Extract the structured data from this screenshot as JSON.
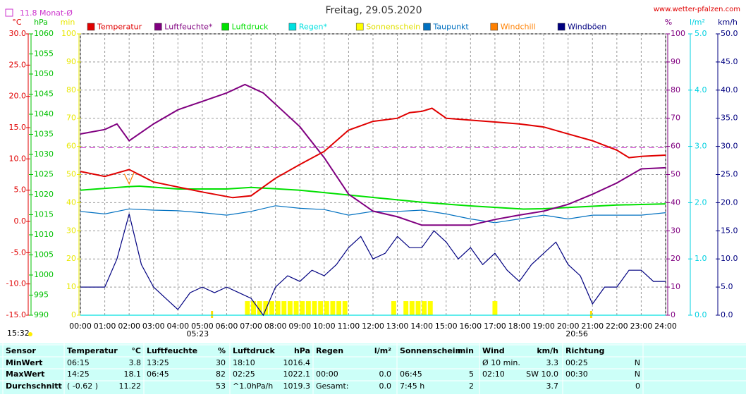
{
  "chart_data": {
    "type": "line",
    "title": "Freitag, 29.05.2020",
    "site": "www.wetter-pfalzen.com",
    "time": "15:32",
    "grid": true,
    "xlim": [
      0,
      24
    ],
    "xticks": [
      {
        "value": 0,
        "label": "00:00"
      },
      {
        "value": 1,
        "label": "01:00"
      },
      {
        "value": 2,
        "label": "02:00"
      },
      {
        "value": 3,
        "label": "03:00"
      },
      {
        "value": 4,
        "label": "04:00"
      },
      {
        "value": 5,
        "label": "05:00"
      },
      {
        "value": 6,
        "label": "06:00"
      },
      {
        "value": 7,
        "label": "07:00"
      },
      {
        "value": 8,
        "label": "08:00"
      },
      {
        "value": 9,
        "label": "09:00"
      },
      {
        "value": 10,
        "label": "10:00"
      },
      {
        "value": 11,
        "label": "11:00"
      },
      {
        "value": 12,
        "label": "12:00"
      },
      {
        "value": 13,
        "label": "13:00"
      },
      {
        "value": 14,
        "label": "14:00"
      },
      {
        "value": 15,
        "label": "15:00"
      },
      {
        "value": 16,
        "label": "16:00"
      },
      {
        "value": 17,
        "label": "17:00"
      },
      {
        "value": 18,
        "label": "18:00"
      },
      {
        "value": 19,
        "label": "19:00"
      },
      {
        "value": 20,
        "label": "20:00"
      },
      {
        "value": 21,
        "label": "21:00"
      },
      {
        "value": 22,
        "label": "22:00"
      },
      {
        "value": 23,
        "label": "23:00"
      },
      {
        "value": 24,
        "label": "24:00"
      }
    ],
    "sunrise": {
      "value": 5.383,
      "label": "05:23"
    },
    "sunset": {
      "value": 20.933,
      "label": "20:56"
    },
    "reference_line": {
      "value": 11.8,
      "label": "11.8 Monat-Ø",
      "color": "#cc33cc",
      "axis": "°C"
    },
    "axes": [
      {
        "unit": "°C",
        "color": "#e00000",
        "ylim": [
          -15,
          30
        ],
        "yticks": [
          {
            "value": 30,
            "label": "30.0"
          },
          {
            "value": 25,
            "label": "25.0"
          },
          {
            "value": 20,
            "label": "20.0"
          },
          {
            "value": 15,
            "label": "15.0"
          },
          {
            "value": 10,
            "label": "10.0"
          },
          {
            "value": 5,
            "label": "5.0"
          },
          {
            "value": 0,
            "label": "0.0"
          },
          {
            "value": -5,
            "label": "-5.0"
          },
          {
            "value": -10,
            "label": "-10.0"
          },
          {
            "value": -15,
            "label": "-15.0"
          }
        ]
      },
      {
        "unit": "hPa",
        "color": "#00c000",
        "ylim": [
          990,
          1060
        ],
        "yticks": [
          1060,
          1055,
          1050,
          1045,
          1040,
          1035,
          1030,
          1025,
          1020,
          1015,
          1010,
          1005,
          1000,
          995,
          990
        ]
      },
      {
        "unit": "min",
        "color": "#e8e800",
        "ylim": [
          0,
          100
        ],
        "yticks": [
          100,
          90,
          80,
          70,
          60,
          50,
          40,
          30,
          20,
          10,
          0
        ]
      },
      {
        "unit": "%",
        "color": "#800080",
        "ylim": [
          0,
          100
        ],
        "yticks": [
          100,
          90,
          80,
          70,
          60,
          50,
          40,
          30,
          20,
          10,
          0
        ]
      },
      {
        "unit": "l/m²",
        "color": "#00d0e0",
        "ylim": [
          0,
          5
        ],
        "yticks": [
          {
            "value": 5,
            "label": "5.0"
          },
          {
            "value": 4,
            "label": "4.0"
          },
          {
            "value": 3,
            "label": "3.0"
          },
          {
            "value": 2,
            "label": "2.0"
          },
          {
            "value": 1,
            "label": "1.0"
          },
          {
            "value": 0,
            "label": "0.0"
          }
        ]
      },
      {
        "unit": "km/h",
        "color": "#000080",
        "ylim": [
          0,
          50
        ],
        "yticks": [
          {
            "value": 50,
            "label": "50.0"
          },
          {
            "value": 45,
            "label": "45.0"
          },
          {
            "value": 40,
            "label": "40.0"
          },
          {
            "value": 35,
            "label": "35.0"
          },
          {
            "value": 30,
            "label": "30.0"
          },
          {
            "value": 25,
            "label": "25.0"
          },
          {
            "value": 20,
            "label": "20.0"
          },
          {
            "value": 15,
            "label": "15.0"
          },
          {
            "value": 10,
            "label": "10.0"
          },
          {
            "value": 5,
            "label": "5.0"
          },
          {
            "value": 0,
            "label": "0.0"
          }
        ]
      }
    ],
    "series": [
      {
        "name": "Temperatur",
        "color": "#e00000",
        "axis": "°C",
        "kind": "line",
        "x": [
          0,
          1,
          2,
          3,
          4,
          5,
          6.25,
          7,
          7.5,
          8,
          9,
          10,
          11,
          12,
          13,
          13.5,
          14,
          14.42,
          15,
          16,
          17,
          18,
          19,
          20,
          21,
          22,
          22.5,
          23,
          24
        ],
        "values": [
          8.0,
          7.2,
          8.3,
          6.3,
          5.5,
          4.7,
          3.8,
          4.1,
          5.5,
          6.9,
          9.1,
          11.2,
          14.6,
          16.0,
          16.5,
          17.4,
          17.6,
          18.1,
          16.5,
          16.2,
          15.9,
          15.6,
          15.1,
          14.0,
          12.9,
          11.4,
          10.2,
          10.4,
          10.6
        ]
      },
      {
        "name": "Luftfeuchte*",
        "color": "#800080",
        "axis": "%",
        "kind": "line",
        "x": [
          0,
          1,
          1.5,
          2,
          3,
          4,
          5,
          6,
          6.75,
          7.5,
          8,
          9,
          10,
          11,
          12,
          13,
          14,
          15,
          16,
          17,
          18,
          19,
          20,
          21,
          22,
          23,
          24
        ],
        "values": [
          64.4,
          66,
          68,
          62,
          68,
          73,
          76,
          79,
          82,
          79,
          75,
          67,
          56,
          43,
          37,
          35,
          32,
          32,
          32,
          34,
          35.6,
          37,
          39.4,
          43,
          47,
          52,
          52.4
        ]
      },
      {
        "name": "Luftdruck",
        "color": "#00e000",
        "axis": "hPa",
        "kind": "line",
        "x": [
          0,
          2,
          2.42,
          4,
          6,
          7,
          9,
          10,
          12,
          14,
          16,
          18.17,
          19,
          20,
          22,
          24
        ],
        "values": [
          1021.1,
          1022.0,
          1022.1,
          1021.4,
          1021.4,
          1021.8,
          1021.1,
          1020.5,
          1019.3,
          1018.1,
          1017.2,
          1016.4,
          1016.5,
          1016.8,
          1017.4,
          1017.7
        ]
      },
      {
        "name": "Regen*",
        "color": "#00e0e0",
        "axis": "l/m²",
        "kind": "line",
        "x": [
          0,
          24
        ],
        "values": [
          0,
          0
        ]
      },
      {
        "name": "Sonnenschein",
        "color": "#ffff00",
        "axis": "min",
        "kind": "bar",
        "x": [
          6.75,
          7,
          7.25,
          7.5,
          7.75,
          8,
          8.25,
          8.5,
          8.75,
          9,
          9.25,
          9.5,
          9.75,
          10,
          10.25,
          10.5,
          10.75,
          12.75,
          13.25,
          13.5,
          13.75,
          14,
          14.25,
          16.9
        ],
        "values": [
          5,
          5,
          5,
          5,
          5,
          5,
          5,
          5,
          5,
          5,
          5,
          5,
          5,
          5,
          5,
          5,
          5,
          5,
          5,
          5,
          5,
          5,
          5,
          5
        ]
      },
      {
        "name": "Taupunkt",
        "color": "#0070c0",
        "axis": "°C",
        "kind": "line",
        "x": [
          0,
          1,
          2,
          3,
          4,
          5,
          6,
          7,
          8,
          9,
          10,
          11,
          12,
          13,
          14,
          15,
          16,
          17,
          18,
          19,
          20,
          21,
          22,
          23,
          24
        ],
        "values": [
          1.6,
          1.2,
          2.0,
          1.8,
          1.7,
          1.4,
          1.0,
          1.6,
          2.5,
          2.1,
          1.9,
          1.0,
          1.6,
          1.6,
          1.8,
          1.2,
          0.4,
          -0.2,
          0.4,
          1.0,
          0.4,
          1.0,
          1.0,
          1.0,
          1.4
        ]
      },
      {
        "name": "Windchill",
        "color": "#ff8000",
        "axis": "°C",
        "kind": "line",
        "x": [
          1.8,
          2.0,
          2.2
        ],
        "values": [
          7.6,
          6.0,
          7.8
        ]
      },
      {
        "name": "Windböen",
        "color": "#000080",
        "axis": "km/h",
        "kind": "line",
        "x": [
          0,
          0.5,
          1,
          1.5,
          2,
          2.5,
          3,
          3.5,
          4,
          4.5,
          5,
          5.5,
          6,
          6.5,
          7,
          7.5,
          8,
          8.5,
          9,
          9.5,
          10,
          10.5,
          11,
          11.5,
          12,
          12.5,
          13,
          13.5,
          14,
          14.5,
          15,
          15.5,
          16,
          16.5,
          17,
          17.5,
          18,
          18.5,
          19,
          19.5,
          20,
          20.5,
          21,
          21.5,
          22,
          22.5,
          23,
          23.5,
          24
        ],
        "values": [
          5,
          5,
          5,
          10,
          18,
          9,
          5,
          3,
          1,
          4,
          5,
          4,
          5,
          4,
          3,
          0,
          5,
          7,
          6,
          8,
          7,
          9,
          12,
          14,
          10,
          11,
          14,
          12,
          12,
          15,
          13,
          10,
          12,
          9,
          11,
          8,
          6,
          9,
          11,
          13,
          9,
          7,
          2,
          5,
          5,
          8,
          8,
          6,
          6
        ]
      }
    ]
  },
  "table": {
    "groups": [
      {
        "header": [
          "Sensor"
        ],
        "rows": [
          [
            "MinWert"
          ],
          [
            "MaxWert"
          ],
          [
            "Durchschnitt"
          ]
        ]
      },
      {
        "header": [
          "Temperatur",
          "°C"
        ],
        "rows": [
          [
            "06:15",
            "3.8"
          ],
          [
            "14:25",
            "18.1"
          ],
          [
            "( -0.62 )",
            "11.22"
          ]
        ]
      },
      {
        "header": [
          "Luftfeuchte",
          "%"
        ],
        "rows": [
          [
            "13:25",
            "30"
          ],
          [
            "06:45",
            "82"
          ],
          [
            "53"
          ]
        ]
      },
      {
        "header": [
          "Luftdruck",
          "hPa"
        ],
        "rows": [
          [
            "18:10",
            "1016.4"
          ],
          [
            "02:25",
            "1022.1"
          ],
          [
            "^1.0hPa/h",
            "1019.3"
          ]
        ]
      },
      {
        "header": [
          "Regen",
          "l/m²"
        ],
        "rows": [
          [],
          [
            "00:00",
            "0.0"
          ],
          [
            "Gesamt:",
            "0.0"
          ]
        ]
      },
      {
        "header": [
          "Sonnenschein",
          "min"
        ],
        "rows": [
          [],
          [
            "06:45",
            "5"
          ],
          [
            "7:45 h",
            "2"
          ]
        ]
      },
      {
        "header": [
          "Wind",
          "km/h"
        ],
        "rows": [
          [
            "Ø 10 min.",
            "3.3"
          ],
          [
            "02:10",
            "SW 10.0"
          ],
          [
            "3.7"
          ]
        ]
      },
      {
        "header": [
          "Richtung"
        ],
        "rows": [
          [
            "00:25",
            "N"
          ],
          [
            "00:30",
            "N"
          ],
          [
            "0"
          ]
        ]
      }
    ]
  }
}
